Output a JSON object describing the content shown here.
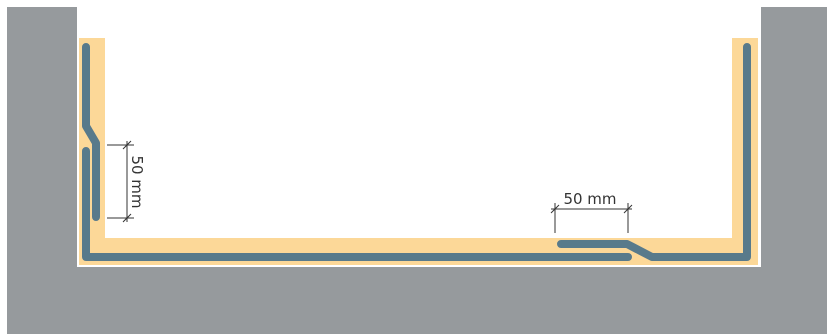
{
  "colors": {
    "concrete": "#969a9d",
    "background": "#ffffff",
    "insulation": "#fcd898",
    "membrane": "#587a8b",
    "dimension_line": "#333333",
    "inner_edge": "#ffffff"
  },
  "dimensions": {
    "wall_overlap_label": "50 mm",
    "floor_overlap_label": "50 mm"
  }
}
